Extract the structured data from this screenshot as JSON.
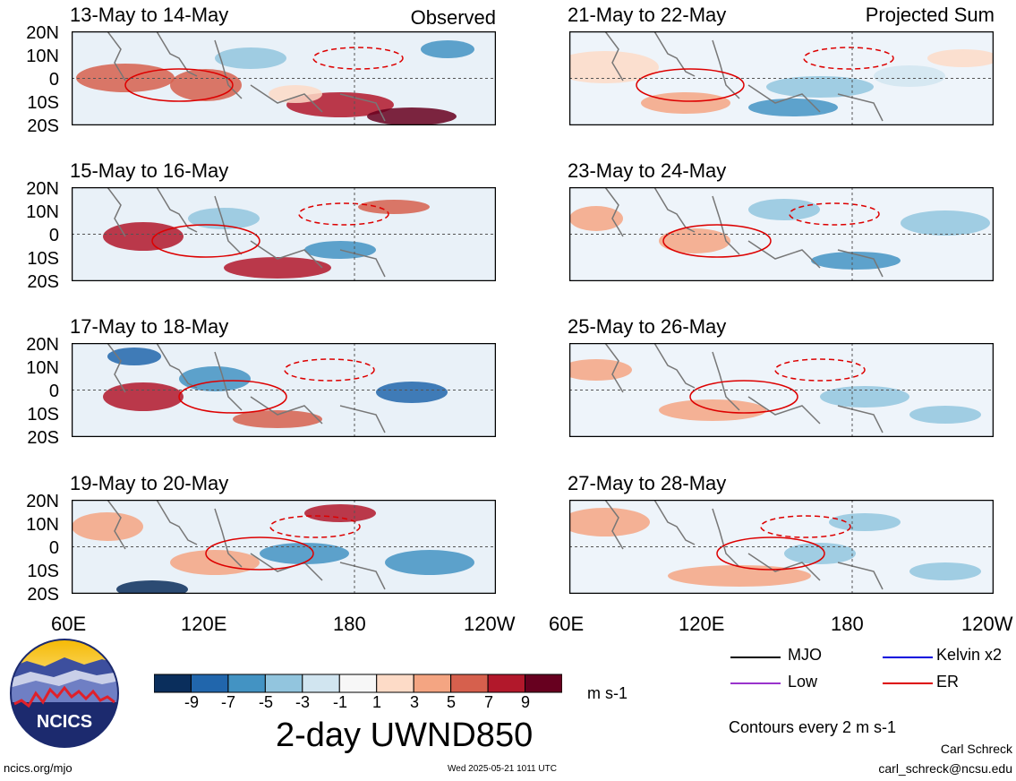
{
  "panels": [
    {
      "title": "13-May to 14-May",
      "tag": "Observed"
    },
    {
      "title": "21-May to 22-May",
      "tag": "Projected Sum"
    },
    {
      "title": "15-May to 16-May",
      "tag": ""
    },
    {
      "title": "23-May to 24-May",
      "tag": ""
    },
    {
      "title": "17-May to 18-May",
      "tag": ""
    },
    {
      "title": "25-May to 26-May",
      "tag": ""
    },
    {
      "title": "19-May to 20-May",
      "tag": ""
    },
    {
      "title": "27-May to 28-May",
      "tag": ""
    }
  ],
  "lat_labels": [
    "20N",
    "10N",
    "0",
    "10S",
    "20S"
  ],
  "lon_labels": [
    "60E",
    "120E",
    "180",
    "120W"
  ],
  "colorbar": {
    "colors": [
      "#0a2e5c",
      "#2166ac",
      "#4393c3",
      "#92c5de",
      "#d1e5f0",
      "#f7f7f7",
      "#fddbc7",
      "#f4a582",
      "#d6604d",
      "#b2182b",
      "#67001f"
    ],
    "ticks": [
      "-9",
      "-7",
      "-5",
      "-3",
      "-1",
      "1",
      "3",
      "5",
      "7",
      "9"
    ],
    "units": "m s-1",
    "title": "2-day UWND850"
  },
  "legend": {
    "items": [
      {
        "label": "MJO",
        "color": "#000000"
      },
      {
        "label": "Kelvin x2",
        "color": "#0000dd"
      },
      {
        "label": "Low",
        "color": "#9933cc"
      },
      {
        "label": "ER",
        "color": "#dd0000"
      }
    ],
    "contours": "Contours every 2 m s-1"
  },
  "logo": {
    "text": "NCICS"
  },
  "footer": {
    "left": "ncics.org/mjo",
    "center": "Wed 2025-05-21 1011 UTC",
    "author": "Carl Schreck",
    "email": "carl_schreck@ncsu.edu"
  }
}
